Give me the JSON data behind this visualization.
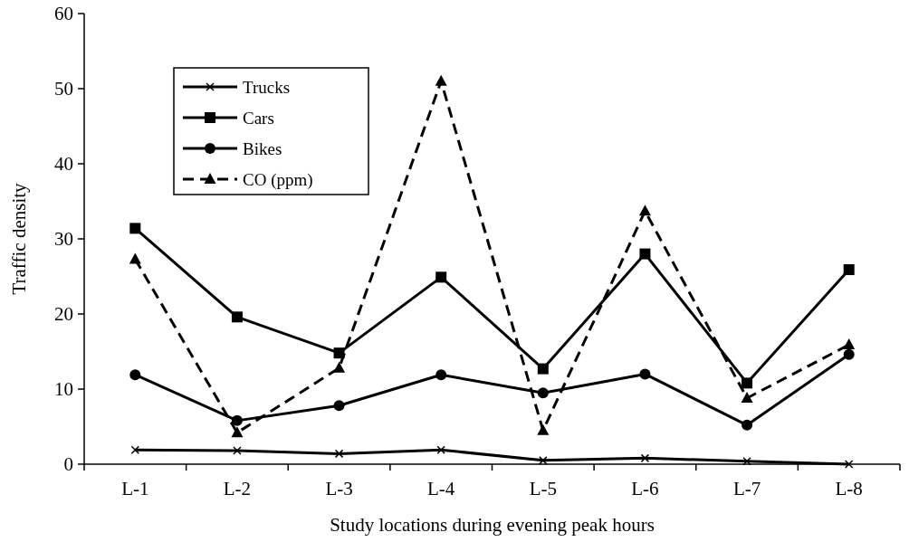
{
  "chart_data": {
    "type": "line",
    "xlabel": "Study locations during evening peak hours",
    "ylabel": "Traffic density",
    "categories": [
      "L-1",
      "L-2",
      "L-3",
      "L-4",
      "L-5",
      "L-6",
      "L-7",
      "L-8"
    ],
    "series": [
      {
        "name": "Trucks",
        "color": "#000000",
        "marker": "cross",
        "line_style": "solid",
        "values": [
          1.9,
          1.8,
          1.4,
          1.9,
          0.5,
          0.8,
          0.4,
          0
        ]
      },
      {
        "name": "Cars",
        "color": "#000000",
        "marker": "square",
        "line_style": "solid",
        "values": [
          31.4,
          19.6,
          14.8,
          24.9,
          12.7,
          28,
          10.8,
          25.9
        ]
      },
      {
        "name": "Bikes",
        "color": "#000000",
        "marker": "circle",
        "line_style": "solid",
        "values": [
          11.9,
          5.8,
          7.8,
          11.9,
          9.5,
          12,
          5.2,
          14.6
        ]
      },
      {
        "name": "CO (ppm)",
        "color": "#000000",
        "marker": "triangle",
        "line_style": "dashed",
        "values": [
          27.3,
          4.2,
          12.8,
          51,
          4.5,
          33.7,
          8.8,
          15.9
        ]
      }
    ],
    "ylim": [
      0,
      60
    ],
    "yticks": [
      0,
      10,
      20,
      30,
      40,
      50,
      60
    ],
    "grid": false,
    "legend": "top left"
  }
}
